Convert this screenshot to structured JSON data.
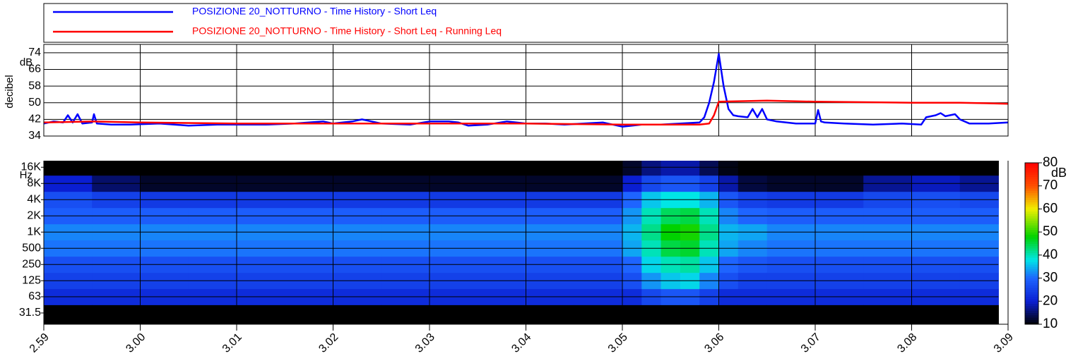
{
  "chart_data": [
    {
      "type": "line",
      "ylabel": "decibel",
      "yunit": "dB",
      "xlim": [
        0,
        10
      ],
      "ylim": [
        34,
        78
      ],
      "yticks": [
        34,
        42,
        50,
        58,
        66,
        74
      ],
      "grid": true,
      "legend": "top",
      "series": [
        {
          "name": "POSIZIONE 20_NOTTURNO - Time History - Short Leq",
          "color": "#0000ff",
          "x": [
            0,
            0.1,
            0.2,
            0.25,
            0.3,
            0.35,
            0.4,
            0.5,
            0.52,
            0.55,
            0.7,
            0.9,
            1.2,
            1.5,
            1.8,
            2.0,
            2.3,
            2.6,
            2.9,
            3.0,
            3.2,
            3.3,
            3.5,
            3.8,
            4.0,
            4.2,
            4.3,
            4.4,
            4.6,
            4.8,
            5.0,
            5.2,
            5.4,
            5.6,
            5.8,
            6.0,
            6.2,
            6.4,
            6.6,
            6.8,
            6.85,
            6.9,
            6.95,
            7.0,
            7.05,
            7.1,
            7.15,
            7.2,
            7.3,
            7.35,
            7.4,
            7.45,
            7.5,
            7.6,
            7.8,
            8.0,
            8.03,
            8.06,
            8.1,
            8.3,
            8.6,
            8.9,
            9.1,
            9.15,
            9.25,
            9.3,
            9.35,
            9.45,
            9.5,
            9.6,
            9.8,
            10
          ],
          "values": [
            40,
            41,
            40.5,
            44,
            40.5,
            44.5,
            40,
            40.5,
            44.5,
            40,
            39.5,
            39.5,
            40,
            39,
            39.5,
            39.5,
            39.5,
            40,
            41,
            40,
            41,
            42,
            40,
            39.5,
            41,
            41,
            40.5,
            39,
            39.5,
            41,
            40,
            40,
            39.5,
            40,
            40.5,
            38.5,
            39.5,
            39.5,
            40,
            40.5,
            43,
            50,
            60,
            73.5,
            58,
            47,
            44,
            43.5,
            43,
            47,
            43,
            47,
            42,
            41,
            40,
            40,
            46.5,
            41,
            40.5,
            40,
            39.5,
            40,
            39.5,
            43,
            44,
            45,
            43.5,
            44.5,
            42,
            40,
            40,
            40.5
          ]
        },
        {
          "name": "POSIZIONE 20_NOTTURNO - Time History - Short Leq - Running Leq",
          "color": "#ff0000",
          "x": [
            0,
            0.5,
            1,
            2,
            3,
            4,
            5,
            6,
            6.8,
            6.9,
            6.95,
            7.0,
            7.5,
            8.0,
            9.0,
            9.5,
            10
          ],
          "values": [
            40.5,
            41,
            40.5,
            40,
            40,
            40,
            40,
            39.5,
            39.5,
            40,
            44,
            50.5,
            51,
            50.5,
            50,
            50,
            49.5
          ]
        }
      ]
    },
    {
      "type": "heatmap",
      "yunit": "Hz",
      "colorbar_label": "dB",
      "xlim": [
        0,
        10
      ],
      "xticks": [
        {
          "value": 0,
          "label": "2.59"
        },
        {
          "value": 1,
          "label": "3.00"
        },
        {
          "value": 2,
          "label": "3.01"
        },
        {
          "value": 3,
          "label": "3.02"
        },
        {
          "value": 4,
          "label": "3.03"
        },
        {
          "value": 5,
          "label": "3.04"
        },
        {
          "value": 6,
          "label": "3.05"
        },
        {
          "value": 7,
          "label": "3.06"
        },
        {
          "value": 8,
          "label": "3.07"
        },
        {
          "value": 9,
          "label": "3.08"
        },
        {
          "value": 10,
          "label": "3.09"
        }
      ],
      "log_y": true,
      "yticks": [
        31.5,
        63,
        125,
        250,
        500,
        {
          "value": 1000,
          "label": "1K"
        },
        {
          "value": 2000,
          "label": "2K"
        },
        {
          "value": 4000,
          "label": "4K"
        },
        {
          "value": 8000,
          "label": "8K"
        },
        {
          "value": 16000,
          "label": "16K"
        }
      ],
      "y": [
        31.5,
        63,
        125,
        250,
        500,
        1000,
        2000,
        4000,
        8000,
        16000
      ],
      "x_edges": [
        0,
        0.5,
        1,
        1.5,
        2,
        2.5,
        3,
        3.5,
        4,
        4.5,
        5,
        5.5,
        6,
        6.2,
        6.4,
        6.6,
        6.8,
        7,
        7.2,
        7.5,
        8,
        8.5,
        9,
        9.5,
        9.9
      ],
      "values": [
        [
          10,
          22,
          25,
          27,
          31,
          32,
          29,
          27,
          20,
          10
        ],
        [
          10,
          22,
          25,
          27,
          31,
          32,
          29,
          25,
          15,
          10
        ],
        [
          10,
          22,
          25,
          27,
          31,
          32,
          29,
          24,
          12,
          10
        ],
        [
          10,
          22,
          25,
          27,
          31,
          32,
          29,
          24,
          12,
          10
        ],
        [
          10,
          22,
          25,
          27,
          31,
          32,
          29,
          24,
          12,
          10
        ],
        [
          10,
          22,
          25,
          27,
          31,
          32,
          29,
          24,
          12,
          10
        ],
        [
          10,
          22,
          25,
          27,
          31,
          32,
          29,
          24,
          12,
          10
        ],
        [
          10,
          22,
          25,
          27,
          31,
          32,
          29,
          24,
          12,
          10
        ],
        [
          10,
          22,
          25,
          27,
          31,
          32,
          29,
          24,
          12,
          10
        ],
        [
          10,
          22,
          25,
          27,
          31,
          32,
          29,
          24,
          12,
          10
        ],
        [
          10,
          22,
          25,
          27,
          31,
          32,
          29,
          24,
          12,
          10
        ],
        [
          10,
          22,
          25,
          27,
          31,
          32,
          29,
          24,
          12,
          10
        ],
        [
          10,
          22,
          27,
          30,
          34,
          35,
          33,
          30,
          20,
          12
        ],
        [
          10,
          26,
          33,
          37,
          40,
          42,
          40,
          36,
          26,
          16
        ],
        [
          10,
          28,
          36,
          40,
          45,
          48,
          44,
          38,
          28,
          18
        ],
        [
          10,
          28,
          37,
          41,
          46,
          49,
          45,
          38,
          28,
          18
        ],
        [
          10,
          25,
          32,
          36,
          40,
          42,
          40,
          35,
          25,
          14
        ],
        [
          10,
          22,
          27,
          30,
          34,
          35,
          32,
          28,
          18,
          11
        ],
        [
          10,
          22,
          25,
          28,
          32,
          34,
          30,
          25,
          13,
          10
        ],
        [
          10,
          22,
          25,
          27,
          31,
          32,
          29,
          24,
          12,
          10
        ],
        [
          10,
          22,
          25,
          27,
          31,
          32,
          29,
          24,
          12,
          10
        ],
        [
          10,
          22,
          25,
          27,
          31,
          32,
          29,
          26,
          17,
          10
        ],
        [
          10,
          22,
          25,
          27,
          31,
          32,
          29,
          27,
          19,
          10
        ],
        [
          10,
          22,
          25,
          27,
          31,
          32,
          29,
          26,
          17,
          10
        ]
      ],
      "colorscale": [
        [
          10,
          "#000000"
        ],
        [
          20,
          "#0a1ed2"
        ],
        [
          30,
          "#1e64ff"
        ],
        [
          38,
          "#00e6e6"
        ],
        [
          48,
          "#00d200"
        ],
        [
          60,
          "#f0f000"
        ],
        [
          70,
          "#ff5000"
        ],
        [
          80,
          "#ff0000"
        ]
      ],
      "clim": [
        10,
        80
      ],
      "cticks": [
        10,
        20,
        30,
        40,
        50,
        60,
        70,
        80
      ]
    }
  ]
}
